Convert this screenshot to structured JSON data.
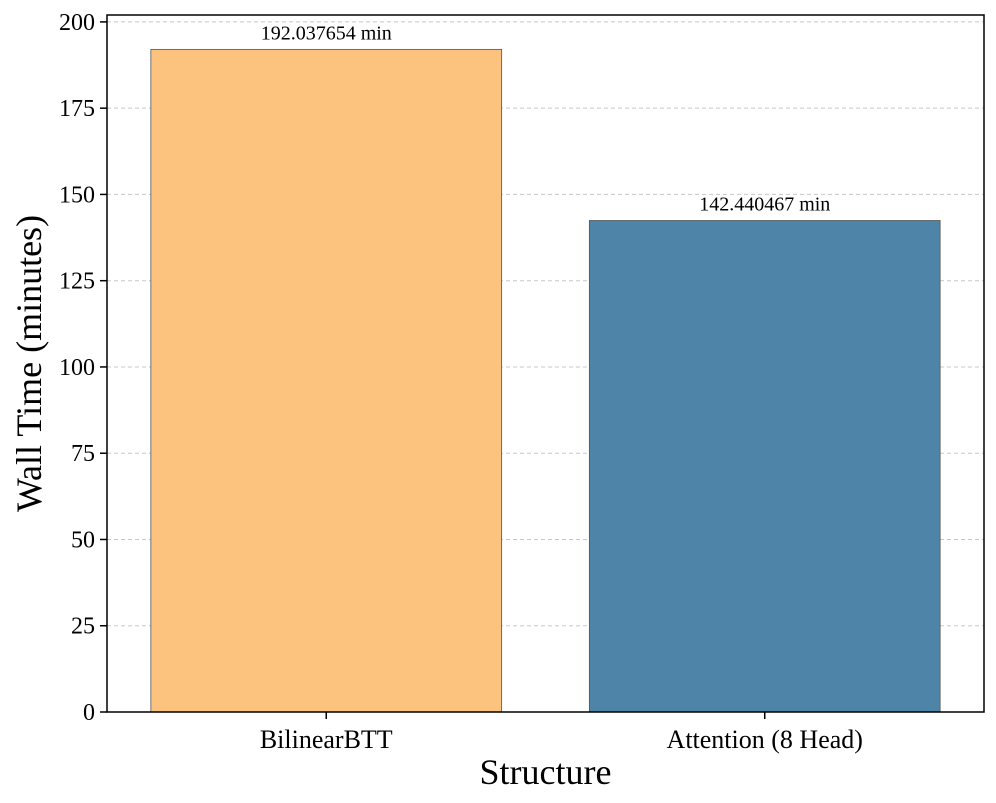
{
  "chart_data": {
    "type": "bar",
    "categories": [
      "BilinearBTT",
      "Attention (8 Head)"
    ],
    "values": [
      192.037654,
      142.440467
    ],
    "data_labels": [
      "192.037654 min",
      "142.440467 min"
    ],
    "colors": [
      "#fbc37e",
      "#4d84a8"
    ],
    "edge_color": "#555555",
    "xlabel": "Structure",
    "ylabel": "Wall Time (minutes)",
    "ylim": [
      0,
      202
    ],
    "yticks": [
      0,
      25,
      50,
      75,
      100,
      125,
      150,
      175,
      200
    ],
    "grid": "y-dashed",
    "legend": "none"
  }
}
